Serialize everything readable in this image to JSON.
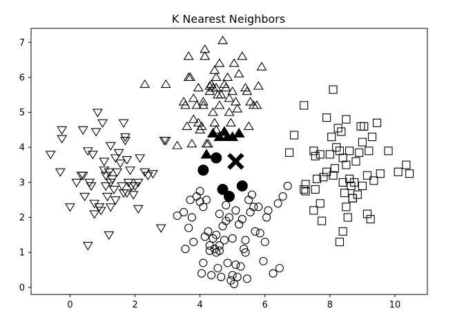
{
  "chart_data": {
    "type": "scatter",
    "title": "K Nearest Neighbors",
    "xlabel": "",
    "ylabel": "",
    "xlim": [
      -1.2,
      11.0
    ],
    "ylim": [
      -0.2,
      7.4
    ],
    "xticks": [
      0,
      2,
      4,
      6,
      8,
      10
    ],
    "yticks": [
      0,
      1,
      2,
      3,
      4,
      5,
      6,
      7
    ],
    "grid": false,
    "legend": "none",
    "series": [
      {
        "marker": "triangle-down-open",
        "points": [
          [
            -0.6,
            3.8
          ],
          [
            -0.3,
            3.3
          ],
          [
            -0.25,
            4.5
          ],
          [
            -0.25,
            4.25
          ],
          [
            0.0,
            2.3
          ],
          [
            0.35,
            3.2
          ],
          [
            0.4,
            4.5
          ],
          [
            0.4,
            3.2
          ],
          [
            0.45,
            2.6
          ],
          [
            0.55,
            1.2
          ],
          [
            0.55,
            3.9
          ],
          [
            0.6,
            3.0
          ],
          [
            0.65,
            2.9
          ],
          [
            0.7,
            3.8
          ],
          [
            0.75,
            2.4
          ],
          [
            0.75,
            2.1
          ],
          [
            0.8,
            4.45
          ],
          [
            0.85,
            5.0
          ],
          [
            0.9,
            2.3
          ],
          [
            0.95,
            2.2
          ],
          [
            1.0,
            4.7
          ],
          [
            1.05,
            3.6
          ],
          [
            1.05,
            3.35
          ],
          [
            1.1,
            3.2
          ],
          [
            1.1,
            2.9
          ],
          [
            1.15,
            2.6
          ],
          [
            1.2,
            1.5
          ],
          [
            1.2,
            3.3
          ],
          [
            1.25,
            3.0
          ],
          [
            1.25,
            2.3
          ],
          [
            1.25,
            4.05
          ],
          [
            1.3,
            3.1
          ],
          [
            1.35,
            2.8
          ],
          [
            1.4,
            2.5
          ],
          [
            1.45,
            3.3
          ],
          [
            1.5,
            3.85
          ],
          [
            1.55,
            3.55
          ],
          [
            1.6,
            2.9
          ],
          [
            1.65,
            2.7
          ],
          [
            1.65,
            4.7
          ],
          [
            1.7,
            4.3
          ],
          [
            1.7,
            4.2
          ],
          [
            1.75,
            3.65
          ],
          [
            1.75,
            2.7
          ],
          [
            1.8,
            3.0
          ],
          [
            1.85,
            3.35
          ],
          [
            1.9,
            2.9
          ],
          [
            1.95,
            2.65
          ],
          [
            2.0,
            2.9
          ],
          [
            2.1,
            2.25
          ],
          [
            2.15,
            3.7
          ],
          [
            2.3,
            3.3
          ],
          [
            2.4,
            3.2
          ],
          [
            2.55,
            3.25
          ],
          [
            2.9,
            4.2
          ],
          [
            2.95,
            4.2
          ],
          [
            2.8,
            1.7
          ],
          [
            0.2,
            3.0
          ],
          [
            1.4,
            3.7
          ],
          [
            2.1,
            3.0
          ]
        ]
      },
      {
        "marker": "triangle-up-open",
        "points": [
          [
            2.3,
            5.8
          ],
          [
            2.95,
            5.8
          ],
          [
            3.3,
            4.05
          ],
          [
            3.5,
            5.3
          ],
          [
            3.55,
            5.2
          ],
          [
            3.6,
            4.6
          ],
          [
            3.65,
            6.6
          ],
          [
            3.65,
            6.0
          ],
          [
            3.7,
            6.0
          ],
          [
            3.75,
            4.1
          ],
          [
            3.8,
            4.8
          ],
          [
            3.8,
            5.4
          ],
          [
            3.9,
            5.2
          ],
          [
            3.95,
            5.7
          ],
          [
            3.95,
            4.7
          ],
          [
            4.0,
            4.5
          ],
          [
            4.05,
            4.6
          ],
          [
            4.1,
            5.3
          ],
          [
            4.15,
            6.8
          ],
          [
            4.15,
            6.6
          ],
          [
            4.2,
            4.1
          ],
          [
            4.3,
            5.6
          ],
          [
            4.3,
            5.75
          ],
          [
            4.35,
            5.8
          ],
          [
            4.4,
            5.7
          ],
          [
            4.4,
            5.0
          ],
          [
            4.45,
            6.2
          ],
          [
            4.45,
            4.7
          ],
          [
            4.5,
            6.0
          ],
          [
            4.5,
            5.7
          ],
          [
            4.55,
            5.5
          ],
          [
            4.6,
            6.4
          ],
          [
            4.6,
            5.2
          ],
          [
            4.65,
            5.5
          ],
          [
            4.7,
            7.05
          ],
          [
            4.75,
            5.8
          ],
          [
            4.8,
            5.7
          ],
          [
            4.85,
            6.0
          ],
          [
            4.9,
            5.4
          ],
          [
            4.9,
            5.0
          ],
          [
            4.95,
            4.7
          ],
          [
            5.0,
            5.6
          ],
          [
            5.05,
            6.4
          ],
          [
            5.1,
            5.3
          ],
          [
            5.15,
            5.1
          ],
          [
            5.2,
            6.1
          ],
          [
            5.3,
            6.6
          ],
          [
            5.4,
            5.7
          ],
          [
            5.45,
            5.6
          ],
          [
            5.5,
            4.6
          ],
          [
            5.55,
            5.3
          ],
          [
            5.65,
            5.2
          ],
          [
            5.75,
            5.2
          ],
          [
            5.8,
            5.75
          ],
          [
            5.9,
            6.3
          ],
          [
            4.1,
            5.2
          ],
          [
            4.5,
            4.5
          ],
          [
            4.25,
            4.1
          ]
        ]
      },
      {
        "marker": "circle-open",
        "points": [
          [
            3.3,
            2.05
          ],
          [
            3.5,
            2.15
          ],
          [
            3.55,
            1.1
          ],
          [
            3.65,
            1.7
          ],
          [
            3.7,
            2.5
          ],
          [
            3.75,
            2.0
          ],
          [
            3.8,
            1.3
          ],
          [
            3.9,
            2.6
          ],
          [
            4.0,
            2.75
          ],
          [
            4.0,
            2.45
          ],
          [
            4.05,
            0.4
          ],
          [
            4.1,
            2.3
          ],
          [
            4.1,
            0.7
          ],
          [
            4.15,
            1.45
          ],
          [
            4.2,
            2.5
          ],
          [
            4.25,
            1.6
          ],
          [
            4.3,
            1.2
          ],
          [
            4.3,
            1.05
          ],
          [
            4.35,
            0.35
          ],
          [
            4.4,
            1.4
          ],
          [
            4.45,
            1.1
          ],
          [
            4.5,
            1.5
          ],
          [
            4.5,
            1.0
          ],
          [
            4.55,
            0.55
          ],
          [
            4.6,
            2.1
          ],
          [
            4.6,
            1.2
          ],
          [
            4.65,
            0.3
          ],
          [
            4.7,
            1.75
          ],
          [
            4.75,
            1.35
          ],
          [
            4.8,
            2.35
          ],
          [
            4.8,
            1.9
          ],
          [
            4.85,
            0.7
          ],
          [
            4.9,
            2.0
          ],
          [
            4.95,
            0.2
          ],
          [
            5.0,
            0.35
          ],
          [
            5.0,
            1.4
          ],
          [
            5.05,
            0.1
          ],
          [
            5.1,
            2.2
          ],
          [
            5.1,
            0.65
          ],
          [
            5.15,
            0.3
          ],
          [
            5.2,
            1.8
          ],
          [
            5.25,
            0.6
          ],
          [
            5.3,
            1.95
          ],
          [
            5.35,
            1.1
          ],
          [
            5.4,
            1.35
          ],
          [
            5.45,
            0.25
          ],
          [
            5.5,
            2.5
          ],
          [
            5.55,
            2.15
          ],
          [
            5.6,
            2.65
          ],
          [
            5.65,
            2.3
          ],
          [
            5.7,
            1.6
          ],
          [
            5.8,
            2.3
          ],
          [
            5.85,
            1.55
          ],
          [
            5.95,
            0.75
          ],
          [
            6.0,
            1.3
          ],
          [
            6.05,
            2.0
          ],
          [
            6.1,
            2.2
          ],
          [
            6.25,
            0.4
          ],
          [
            6.4,
            2.4
          ],
          [
            6.45,
            0.55
          ],
          [
            6.55,
            2.6
          ],
          [
            6.7,
            2.9
          ],
          [
            5.4,
            1.0
          ],
          [
            4.6,
            1.05
          ]
        ]
      },
      {
        "marker": "square-open",
        "points": [
          [
            6.75,
            3.85
          ],
          [
            6.9,
            4.35
          ],
          [
            7.2,
            5.2
          ],
          [
            7.2,
            2.8
          ],
          [
            7.25,
            2.95
          ],
          [
            7.25,
            2.75
          ],
          [
            7.5,
            2.2
          ],
          [
            7.5,
            3.9
          ],
          [
            7.55,
            3.75
          ],
          [
            7.55,
            2.8
          ],
          [
            7.6,
            3.1
          ],
          [
            7.7,
            2.4
          ],
          [
            7.7,
            3.8
          ],
          [
            7.75,
            1.9
          ],
          [
            7.8,
            3.15
          ],
          [
            7.9,
            3.3
          ],
          [
            7.9,
            4.85
          ],
          [
            8.0,
            3.8
          ],
          [
            8.05,
            4.3
          ],
          [
            8.1,
            5.65
          ],
          [
            8.1,
            3.2
          ],
          [
            8.15,
            3.4
          ],
          [
            8.2,
            4.0
          ],
          [
            8.25,
            4.55
          ],
          [
            8.3,
            3.9
          ],
          [
            8.3,
            1.3
          ],
          [
            8.35,
            4.45
          ],
          [
            8.4,
            3.7
          ],
          [
            8.4,
            3.0
          ],
          [
            8.45,
            2.7
          ],
          [
            8.5,
            4.8
          ],
          [
            8.5,
            3.5
          ],
          [
            8.5,
            2.3
          ],
          [
            8.55,
            2.0
          ],
          [
            8.6,
            3.9
          ],
          [
            8.6,
            3.1
          ],
          [
            8.65,
            2.9
          ],
          [
            8.7,
            2.55
          ],
          [
            8.75,
            3.0
          ],
          [
            8.8,
            3.6
          ],
          [
            8.85,
            2.65
          ],
          [
            8.9,
            3.85
          ],
          [
            8.95,
            4.6
          ],
          [
            9.0,
            4.15
          ],
          [
            9.0,
            2.9
          ],
          [
            9.05,
            4.6
          ],
          [
            9.15,
            2.1
          ],
          [
            9.15,
            3.2
          ],
          [
            9.2,
            3.9
          ],
          [
            9.25,
            1.95
          ],
          [
            9.3,
            4.3
          ],
          [
            9.35,
            3.05
          ],
          [
            9.45,
            4.7
          ],
          [
            9.55,
            3.25
          ],
          [
            9.8,
            3.9
          ],
          [
            10.1,
            3.3
          ],
          [
            10.35,
            3.5
          ],
          [
            10.45,
            3.25
          ],
          [
            8.4,
            1.6
          ],
          [
            8.7,
            2.55
          ]
        ]
      },
      {
        "marker": "triangle-up-filled",
        "points": [
          [
            4.2,
            3.8
          ],
          [
            4.4,
            4.4
          ],
          [
            4.6,
            4.3
          ],
          [
            4.75,
            4.45
          ],
          [
            4.85,
            4.3
          ],
          [
            5.0,
            4.3
          ],
          [
            5.2,
            4.4
          ]
        ]
      },
      {
        "marker": "circle-filled",
        "points": [
          [
            4.1,
            3.35
          ],
          [
            4.5,
            3.7
          ],
          [
            4.7,
            2.8
          ],
          [
            4.9,
            2.6
          ],
          [
            5.3,
            2.9
          ]
        ]
      },
      {
        "marker": "x-filled",
        "points": [
          [
            5.1,
            3.6
          ]
        ]
      }
    ]
  }
}
